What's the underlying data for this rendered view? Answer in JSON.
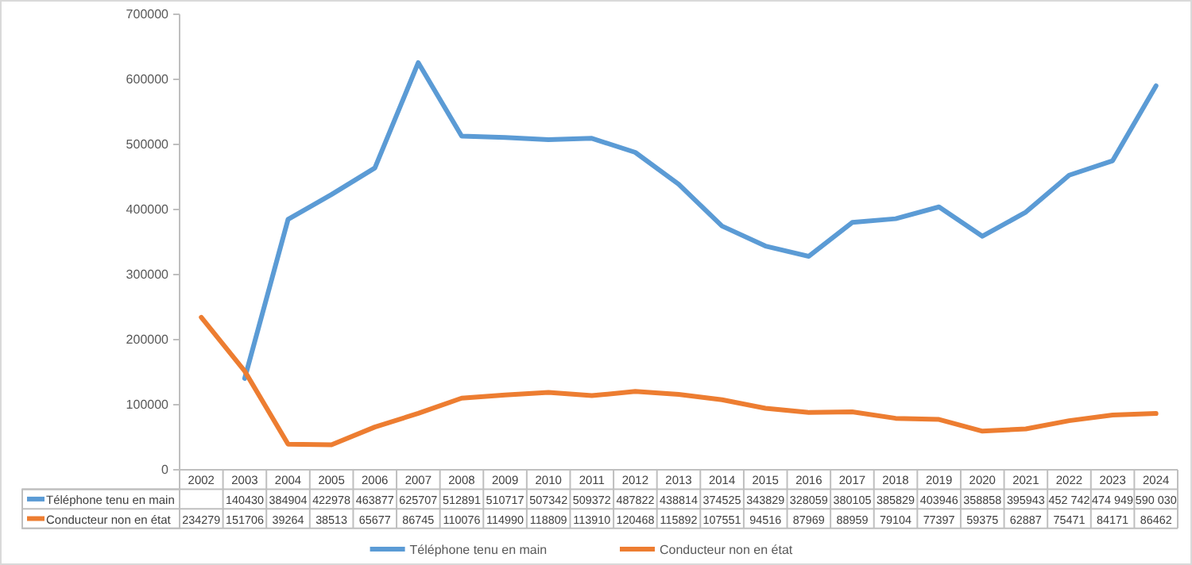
{
  "chart_data": {
    "type": "line",
    "categories": [
      "2002",
      "2003",
      "2004",
      "2005",
      "2006",
      "2007",
      "2008",
      "2009",
      "2010",
      "2011",
      "2012",
      "2013",
      "2014",
      "2015",
      "2016",
      "2017",
      "2018",
      "2019",
      "2020",
      "2021",
      "2022",
      "2023",
      "2024"
    ],
    "series": [
      {
        "name": "Téléphone tenu en main",
        "color": "#5b9bd5",
        "values": [
          null,
          140430,
          384904,
          422978,
          463877,
          625707,
          512891,
          510717,
          507342,
          509372,
          487822,
          438814,
          374525,
          343829,
          328059,
          380105,
          385829,
          403946,
          358858,
          395943,
          452742,
          474949,
          590030
        ],
        "value_labels": [
          null,
          "140430",
          "384904",
          "422978",
          "463877",
          "625707",
          "512891",
          "510717",
          "507342",
          "509372",
          "487822",
          "438814",
          "374525",
          "343829",
          "328059",
          "380105",
          "385829",
          "403946",
          "358858",
          "395943",
          "452 742",
          "474 949",
          "590 030"
        ]
      },
      {
        "name": "Conducteur non en état",
        "color": "#ed7d31",
        "values": [
          234279,
          151706,
          39264,
          38513,
          65677,
          86745,
          110076,
          114990,
          118809,
          113910,
          120468,
          115892,
          107551,
          94516,
          87969,
          88959,
          79104,
          77397,
          59375,
          62887,
          75471,
          84171,
          86462
        ],
        "value_labels": [
          "234279",
          "151706",
          "39264",
          "38513",
          "65677",
          "86745",
          "110076",
          "114990",
          "118809",
          "113910",
          "120468",
          "115892",
          "107551",
          "94516",
          "87969",
          "88959",
          "79104",
          "77397",
          "59375",
          "62887",
          "75471",
          "84171",
          "86462"
        ]
      }
    ],
    "ylim": [
      0,
      700000
    ],
    "yticks": [
      0,
      100000,
      200000,
      300000,
      400000,
      500000,
      600000,
      700000
    ],
    "grid": false,
    "legend": "bottom",
    "marker": "none",
    "line_style": "solid"
  }
}
